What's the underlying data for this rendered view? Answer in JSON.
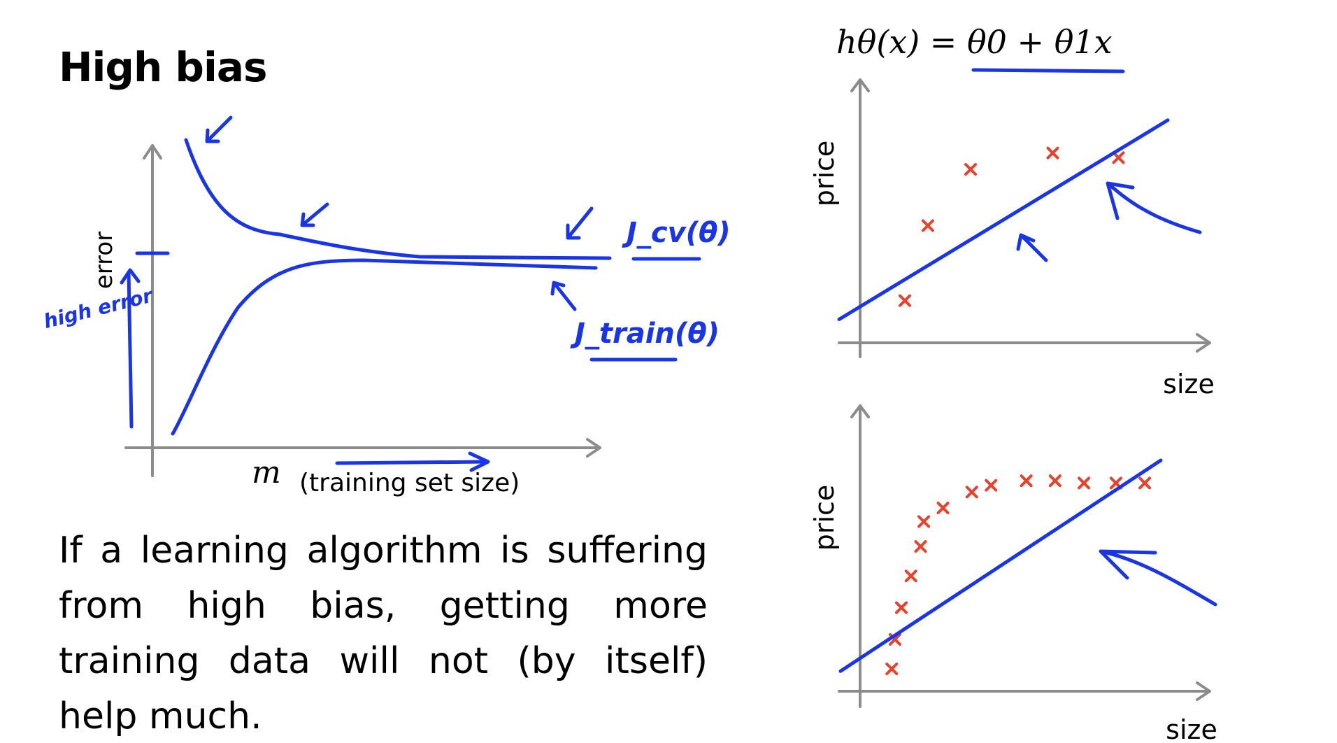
{
  "slide": {
    "title": "High bias",
    "body": "If a learning algorithm is suffering from high bias, getting more training data will not (by itself) help much."
  },
  "colors": {
    "ink": "#1a35e6",
    "points": "#e8412c",
    "axis": "#8c8c8c"
  },
  "chart_data": [
    {
      "type": "line",
      "xlabel": "m",
      "xlabel_suffix": "(training set size)",
      "ylabel": "error",
      "series": [
        {
          "name": "J_cv(θ)",
          "curve": "decreasing"
        },
        {
          "name": "J_train(θ)",
          "curve": "increasing"
        }
      ],
      "annotations": {
        "high_error": "high error",
        "jcv": "J_cv(θ)",
        "jtrain": "J_train(θ)"
      },
      "grid": false
    },
    {
      "type": "scatter",
      "title": "hθ(x) = θ0 + θ1x",
      "xlabel": "size",
      "ylabel": "price",
      "points": [
        [
          0.2,
          0.18
        ],
        [
          0.27,
          0.5
        ],
        [
          0.4,
          0.74
        ],
        [
          0.65,
          0.81
        ],
        [
          0.85,
          0.79
        ]
      ],
      "fit_line": [
        [
          0.0,
          0.1
        ],
        [
          1.0,
          0.95
        ]
      ],
      "grid": false
    },
    {
      "type": "scatter",
      "xlabel": "size",
      "ylabel": "price",
      "points": [
        [
          0.16,
          0.08
        ],
        [
          0.17,
          0.21
        ],
        [
          0.19,
          0.35
        ],
        [
          0.22,
          0.49
        ],
        [
          0.25,
          0.62
        ],
        [
          0.26,
          0.73
        ],
        [
          0.32,
          0.79
        ],
        [
          0.41,
          0.86
        ],
        [
          0.47,
          0.89
        ],
        [
          0.58,
          0.91
        ],
        [
          0.67,
          0.91
        ],
        [
          0.76,
          0.9
        ],
        [
          0.86,
          0.9
        ],
        [
          0.95,
          0.9
        ]
      ],
      "fit_line": [
        [
          0.0,
          0.07
        ],
        [
          1.0,
          1.0
        ]
      ],
      "grid": false
    }
  ]
}
